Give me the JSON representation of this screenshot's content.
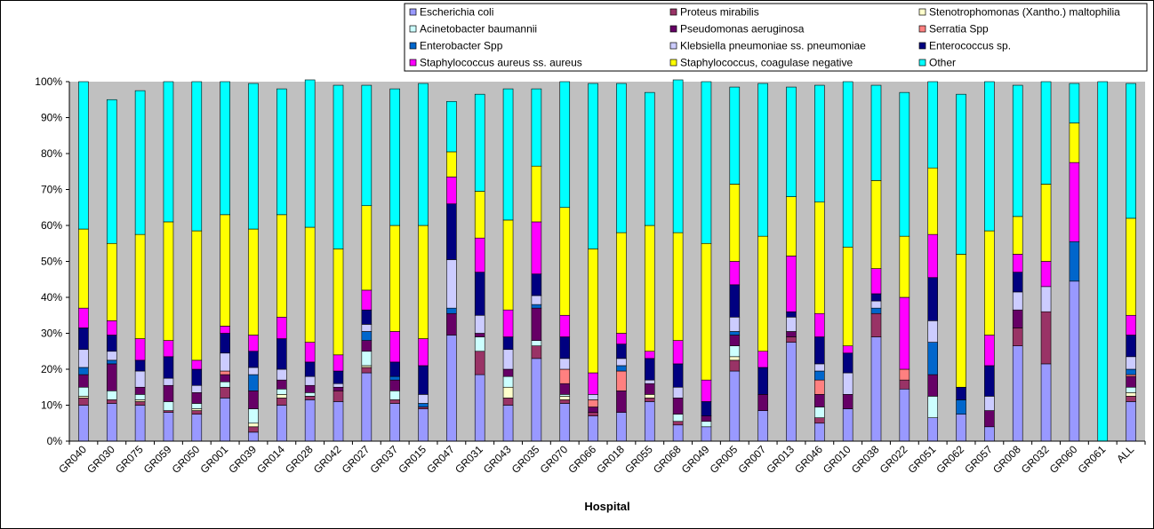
{
  "chart_data": {
    "type": "bar",
    "stacked": true,
    "percent_stacked": true,
    "title": "",
    "xlabel": "Hospital",
    "ylabel": "",
    "ylim": [
      0,
      100
    ],
    "yticks": [
      "0%",
      "10%",
      "20%",
      "30%",
      "40%",
      "50%",
      "60%",
      "70%",
      "80%",
      "90%",
      "100%"
    ],
    "grid": false,
    "plot_background": "#c0c0c0",
    "legend_position": "top-right",
    "categories": [
      "GR040",
      "GR030",
      "GR075",
      "GR059",
      "GR050",
      "GR001",
      "GR039",
      "GR014",
      "GR028",
      "GR042",
      "GR027",
      "GR037",
      "GR015",
      "GR047",
      "GR031",
      "GR043",
      "GR035",
      "GR070",
      "GR066",
      "GR018",
      "GR055",
      "GR068",
      "GR049",
      "GR005",
      "GR007",
      "GR013",
      "GR046",
      "GR010",
      "GR038",
      "GR022",
      "GR051",
      "GR062",
      "GR057",
      "GR008",
      "GR032",
      "GR060",
      "GR061",
      "ALL"
    ],
    "series": [
      {
        "name": "Escherichia coli",
        "color": "#9999ff",
        "values": [
          10,
          10.5,
          10,
          8,
          7.5,
          12,
          2.5,
          10,
          11.5,
          11,
          19,
          10.5,
          9,
          29.5,
          18.5,
          10,
          23,
          10.5,
          7,
          8,
          11,
          4.5,
          4,
          19.5,
          8.5,
          27.5,
          5,
          9,
          29,
          14.5,
          6.5,
          7.5,
          4,
          26.5,
          21.5,
          44.5,
          0,
          11
        ]
      },
      {
        "name": "Proteus mirabilis",
        "color": "#993366",
        "values": [
          2,
          1,
          1,
          0.5,
          1,
          3,
          1.5,
          2,
          1,
          3,
          1.5,
          1,
          0.5,
          0,
          6.5,
          2,
          3.5,
          1,
          1,
          0,
          1,
          1,
          0,
          3,
          0,
          1.5,
          1.5,
          0,
          6.5,
          2.5,
          0,
          0,
          0,
          5,
          14.5,
          0,
          0,
          1.5
        ]
      },
      {
        "name": "Stenotrophomonas (Xantho.) maltophilia",
        "color": "#ffffcc",
        "values": [
          0.5,
          0,
          0.5,
          0,
          0.5,
          0,
          1,
          1,
          0,
          0,
          0.5,
          0,
          0,
          0,
          0,
          3,
          0,
          1,
          0,
          0,
          1,
          0,
          0,
          1,
          0,
          0,
          0,
          0,
          0,
          0,
          0,
          0,
          0,
          0,
          0,
          0,
          0,
          1
        ]
      },
      {
        "name": "Acinetobacter baumannii",
        "color": "#ccffff",
        "values": [
          2.5,
          2.5,
          1.5,
          2.5,
          1.5,
          1.5,
          4,
          1.5,
          1,
          0,
          4,
          2.5,
          0,
          0,
          4,
          3,
          1.5,
          0.5,
          0,
          0,
          0,
          2,
          1.5,
          3,
          0,
          0,
          3,
          0,
          0,
          0,
          6,
          0,
          0,
          0,
          0,
          0,
          0,
          1.5
        ]
      },
      {
        "name": "Pseudomonas aeruginosa",
        "color": "#660066",
        "values": [
          3.5,
          7.5,
          2,
          4.5,
          3,
          2,
          5,
          2.5,
          2,
          1,
          3,
          3,
          0,
          6,
          1,
          2,
          9,
          3,
          1.5,
          6,
          3,
          4.5,
          1.5,
          3,
          4.5,
          1.5,
          3.5,
          4,
          0,
          0,
          6,
          0,
          4.5,
          5,
          0,
          0,
          0,
          3
        ]
      },
      {
        "name": "Serratia Spp",
        "color": "#ff8080",
        "values": [
          0,
          0,
          0,
          0,
          0,
          1,
          0,
          0,
          0,
          0,
          0,
          0,
          0,
          0,
          0,
          0,
          0,
          4,
          2,
          5.5,
          0,
          0,
          0,
          0,
          0,
          0,
          4,
          0,
          0,
          3,
          0,
          0,
          0,
          0,
          0,
          0,
          0,
          0.5
        ]
      },
      {
        "name": "Enterobacter Spp",
        "color": "#0066cc",
        "values": [
          2,
          1,
          0,
          0,
          0,
          0,
          4.5,
          0,
          0,
          0,
          2.5,
          1,
          1,
          1.5,
          0,
          0,
          1,
          0,
          0,
          1.5,
          0,
          0,
          0,
          1,
          0,
          0,
          2.5,
          0,
          1.5,
          0,
          9,
          4,
          0,
          0,
          0,
          11,
          0,
          1.5
        ]
      },
      {
        "name": "Klebsiella pneumoniae ss. pneumoniae",
        "color": "#ccccff",
        "values": [
          5,
          2.5,
          4.5,
          2,
          2,
          5,
          2,
          3,
          2.5,
          1,
          2,
          0,
          2.5,
          13.5,
          5,
          5.5,
          2.5,
          3,
          1.5,
          2,
          1,
          3,
          0,
          4,
          0,
          4,
          2,
          6,
          2,
          0,
          6,
          0,
          4,
          5,
          7,
          0,
          0,
          3.5
        ]
      },
      {
        "name": "Enterococcus sp.",
        "color": "#000080",
        "values": [
          6,
          4.5,
          3,
          6,
          4.5,
          5.5,
          4.5,
          8.5,
          4,
          3.5,
          4,
          4,
          8,
          15.5,
          12,
          3.5,
          6,
          6,
          0,
          4,
          6,
          6.5,
          4,
          9,
          7.5,
          1.5,
          7.5,
          5.5,
          2,
          0,
          12,
          3.5,
          8.5,
          5.5,
          0,
          0,
          0,
          6
        ]
      },
      {
        "name": "Staphylococcus aureus ss. aureus",
        "color": "#ff00ff",
        "values": [
          5.5,
          4,
          6,
          4.5,
          2.5,
          2,
          4.5,
          6,
          5.5,
          4.5,
          5.5,
          8.5,
          7.5,
          7.5,
          9.5,
          7.5,
          14.5,
          6,
          6,
          3,
          2,
          6.5,
          6,
          6.5,
          4.5,
          15.5,
          6.5,
          2,
          7,
          20,
          12,
          0,
          8.5,
          5,
          7,
          22,
          0,
          5.5
        ]
      },
      {
        "name": "Staphylococcus, coagulase negative",
        "color": "#ffff00",
        "values": [
          22,
          21.5,
          29,
          33,
          36,
          31,
          29.5,
          28.5,
          32,
          29.5,
          23.5,
          29.5,
          31.5,
          7,
          13,
          25,
          15.5,
          30,
          34.5,
          28,
          35,
          30,
          38,
          21.5,
          32,
          16.5,
          31,
          27.5,
          24.5,
          17,
          18.5,
          37,
          29,
          10.5,
          21.5,
          11,
          0,
          27
        ]
      },
      {
        "name": "Other",
        "color": "#00ffff",
        "values": [
          41,
          40,
          40,
          39,
          41.5,
          37,
          40.5,
          35,
          41,
          45.5,
          33.5,
          38,
          39.5,
          14,
          27,
          36.5,
          21.5,
          35,
          46,
          41.5,
          37,
          42.5,
          45,
          27,
          42.5,
          30.5,
          32.5,
          46,
          26.5,
          40,
          24,
          44.5,
          41.5,
          36.5,
          28.5,
          11,
          100,
          37.5
        ]
      }
    ]
  }
}
